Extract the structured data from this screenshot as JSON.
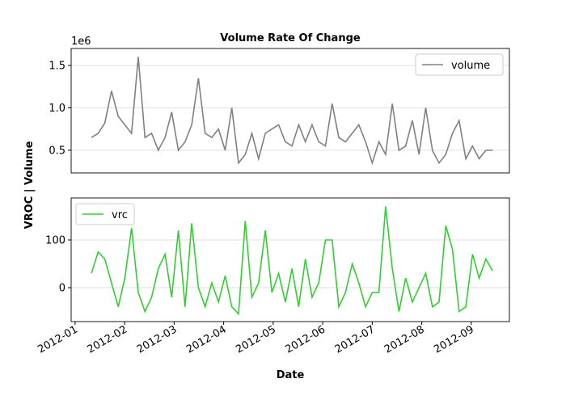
{
  "chart_data": [
    {
      "type": "line",
      "title": "Volume Rate Of Change",
      "ylabel": "VROC | Volume",
      "y_offset_label": "1e6",
      "x": [
        1.33,
        1.465,
        1.6,
        1.735,
        1.87,
        2.005,
        2.14,
        2.275,
        2.41,
        2.545,
        2.68,
        2.815,
        2.95,
        3.085,
        3.22,
        3.355,
        3.49,
        3.625,
        3.76,
        3.895,
        4.03,
        4.165,
        4.3,
        4.435,
        4.57,
        4.705,
        4.84,
        4.975,
        5.11,
        5.245,
        5.38,
        5.515,
        5.65,
        5.785,
        5.92,
        6.055,
        6.19,
        6.325,
        6.46,
        6.595,
        6.73,
        6.865,
        7.0,
        7.135,
        7.27,
        7.405,
        7.54,
        7.675,
        7.81,
        7.945,
        8.08,
        8.215,
        8.35,
        8.485,
        8.62,
        8.755,
        8.89,
        9.025,
        9.16,
        9.295,
        9.43
      ],
      "series": [
        {
          "name": "volume",
          "color": "#808080",
          "values": [
            650000,
            700000,
            820000,
            1200000,
            900000,
            800000,
            700000,
            1600000,
            650000,
            700000,
            500000,
            650000,
            950000,
            500000,
            600000,
            800000,
            1350000,
            700000,
            650000,
            750000,
            500000,
            1000000,
            350000,
            450000,
            700000,
            400000,
            700000,
            750000,
            800000,
            600000,
            550000,
            800000,
            600000,
            800000,
            600000,
            550000,
            1050000,
            650000,
            600000,
            700000,
            800000,
            600000,
            350000,
            600000,
            450000,
            1050000,
            500000,
            550000,
            850000,
            450000,
            1000000,
            500000,
            350000,
            450000,
            700000,
            850000,
            400000,
            550000,
            400000,
            500000,
            500000
          ]
        }
      ],
      "xlim": [
        0.92,
        9.77
      ],
      "ylim": [
        233000,
        1700000
      ],
      "yticks": [
        {
          "value": 500000,
          "label": "0.5"
        },
        {
          "value": 1000000,
          "label": "1.0"
        },
        {
          "value": 1500000,
          "label": "1.5"
        }
      ],
      "grid": "y",
      "legend": "upper right"
    },
    {
      "type": "line",
      "xlabel": "Date",
      "x": [
        1.33,
        1.465,
        1.6,
        1.735,
        1.87,
        2.005,
        2.14,
        2.275,
        2.41,
        2.545,
        2.68,
        2.815,
        2.95,
        3.085,
        3.22,
        3.355,
        3.49,
        3.625,
        3.76,
        3.895,
        4.03,
        4.165,
        4.3,
        4.435,
        4.57,
        4.705,
        4.84,
        4.975,
        5.11,
        5.245,
        5.38,
        5.515,
        5.65,
        5.785,
        5.92,
        6.055,
        6.19,
        6.325,
        6.46,
        6.595,
        6.73,
        6.865,
        7.0,
        7.135,
        7.27,
        7.405,
        7.54,
        7.675,
        7.81,
        7.945,
        8.08,
        8.215,
        8.35,
        8.485,
        8.62,
        8.755,
        8.89,
        9.025,
        9.16,
        9.295,
        9.43
      ],
      "series": [
        {
          "name": "vrc",
          "color": "#32cd32",
          "values": [
            30,
            75,
            60,
            10,
            -40,
            20,
            125,
            -10,
            -50,
            -20,
            40,
            70,
            -20,
            120,
            -40,
            135,
            0,
            -40,
            10,
            -30,
            25,
            -40,
            -55,
            140,
            -20,
            10,
            120,
            -10,
            30,
            -30,
            40,
            -40,
            60,
            -20,
            10,
            100,
            100,
            -40,
            -10,
            50,
            10,
            -40,
            -10,
            -10,
            170,
            40,
            -50,
            20,
            -30,
            0,
            30,
            -40,
            -30,
            130,
            80,
            -50,
            -40,
            70,
            20,
            60,
            35
          ]
        }
      ],
      "xlim": [
        0.92,
        9.77
      ],
      "ylim": [
        -71,
        188
      ],
      "xticks": [
        {
          "value": 1,
          "label": "2012-01"
        },
        {
          "value": 2,
          "label": "2012-02"
        },
        {
          "value": 3,
          "label": "2012-03"
        },
        {
          "value": 4,
          "label": "2012-04"
        },
        {
          "value": 5,
          "label": "2012-05"
        },
        {
          "value": 6,
          "label": "2012-06"
        },
        {
          "value": 7,
          "label": "2012-07"
        },
        {
          "value": 8,
          "label": "2012-08"
        },
        {
          "value": 9,
          "label": "2012-09"
        }
      ],
      "yticks": [
        0,
        100
      ],
      "grid": "y",
      "legend": "upper left"
    }
  ]
}
